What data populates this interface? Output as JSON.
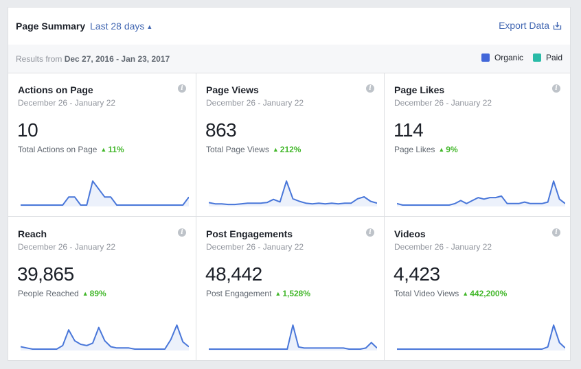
{
  "header": {
    "title": "Page Summary",
    "range_label": "Last 28 days",
    "range_icon": "up-down-arrows-icon",
    "export_label": "Export Data",
    "export_icon": "download-icon"
  },
  "subheader": {
    "results_prefix": "Results from",
    "results_range": "Dec 27, 2016 - Jan 23, 2017",
    "legend": [
      {
        "label": "Organic",
        "color": "#4267d9"
      },
      {
        "label": "Paid",
        "color": "#2abba7"
      }
    ]
  },
  "colors": {
    "line": "#4876d9",
    "fill": "#ecf1fb",
    "positive": "#42b72a",
    "link": "#4267b2"
  },
  "cards": [
    {
      "title": "Actions on Page",
      "date": "December 26 - January 22",
      "value": "10",
      "subtitle": "Total Actions on Page",
      "change": "11%",
      "change_icon": "up-triangle-icon",
      "series": [
        0,
        0,
        0,
        0,
        0,
        0,
        0,
        0,
        1,
        1,
        0,
        0,
        3,
        2,
        1,
        1,
        0,
        0,
        0,
        0,
        0,
        0,
        0,
        0,
        0,
        0,
        0,
        0,
        1
      ]
    },
    {
      "title": "Page Views",
      "date": "December 26 - January 22",
      "value": "863",
      "subtitle": "Total Page Views",
      "change": "212%",
      "change_icon": "up-triangle-icon",
      "series": [
        4,
        2,
        2,
        1,
        1,
        2,
        3,
        3,
        3,
        4,
        9,
        5,
        38,
        10,
        6,
        3,
        2,
        3,
        2,
        3,
        2,
        3,
        3,
        10,
        13,
        6,
        3
      ]
    },
    {
      "title": "Page Likes",
      "date": "December 26 - January 22",
      "value": "114",
      "subtitle": "Page Likes",
      "change": "9%",
      "change_icon": "up-triangle-icon",
      "series": [
        1,
        0,
        0,
        0,
        0,
        0,
        0,
        0,
        0,
        0,
        1,
        3,
        1,
        3,
        5,
        4,
        5,
        5,
        6,
        1,
        1,
        1,
        2,
        1,
        1,
        1,
        2,
        16,
        4,
        1
      ]
    },
    {
      "title": "Reach",
      "date": "December 26 - January 22",
      "value": "39,865",
      "subtitle": "People Reached",
      "change": "89%",
      "change_icon": "up-triangle-icon",
      "series": [
        2,
        1,
        0,
        0,
        0,
        0,
        0,
        3,
        16,
        7,
        4,
        3,
        5,
        18,
        7,
        2,
        1,
        1,
        1,
        0,
        0,
        0,
        0,
        0,
        0,
        8,
        20,
        6,
        2
      ]
    },
    {
      "title": "Post Engagements",
      "date": "December 26 - January 22",
      "value": "48,442",
      "subtitle": "Post Engagement",
      "change": "1,528%",
      "change_icon": "up-triangle-icon",
      "series": [
        0,
        0,
        0,
        0,
        0,
        0,
        0,
        0,
        0,
        0,
        0,
        0,
        0,
        0,
        0,
        22,
        2,
        1,
        1,
        1,
        1,
        1,
        1,
        1,
        1,
        0,
        0,
        0,
        1,
        6,
        1
      ]
    },
    {
      "title": "Videos",
      "date": "December 26 - January 22",
      "value": "4,423",
      "subtitle": "Total Video Views",
      "change": "442,200%",
      "change_icon": "up-triangle-icon",
      "series": [
        0,
        0,
        0,
        0,
        0,
        0,
        0,
        0,
        0,
        0,
        0,
        0,
        0,
        0,
        0,
        0,
        0,
        0,
        0,
        0,
        0,
        0,
        0,
        0,
        0,
        0,
        2,
        22,
        6,
        1
      ]
    }
  ]
}
